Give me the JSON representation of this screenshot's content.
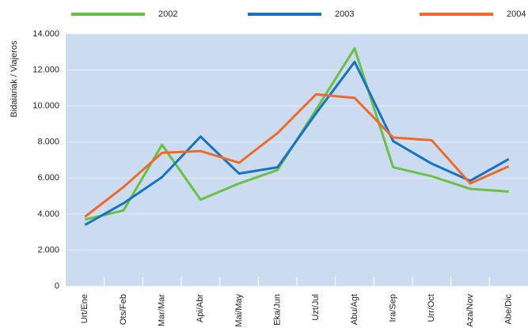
{
  "chart_data": {
    "type": "line",
    "y_label": "Bidaiariak / Viajeros",
    "categories": [
      "Urt/Ene",
      "Ots/Feb",
      "Mar/Mar",
      "Api/Abr",
      "Mai/May",
      "Eka/Jun",
      "Uzt/Jul",
      "Abu/Agt",
      "Ira/Sep",
      "Urr/Oct",
      "Aza/Nov",
      "Abe/Dic"
    ],
    "series": [
      {
        "name": "2002",
        "color": "#6abf45",
        "values": [
          3700,
          4200,
          7850,
          4800,
          5700,
          6450,
          9800,
          13200,
          6600,
          6100,
          5400,
          5250
        ]
      },
      {
        "name": "2003",
        "color": "#1673c4",
        "values": [
          3400,
          4600,
          6050,
          8300,
          6250,
          6600,
          9600,
          12450,
          8050,
          6800,
          5850,
          7050
        ]
      },
      {
        "name": "2004",
        "color": "#ef6a2a",
        "values": [
          3850,
          5500,
          7400,
          7500,
          6850,
          8500,
          10650,
          10450,
          8250,
          8100,
          5700,
          6650
        ]
      }
    ],
    "ylim": [
      0,
      14000
    ],
    "yticks": [
      0,
      {
        "value": 2000,
        "label": "2.000"
      },
      {
        "value": 4000,
        "label": "4.000"
      },
      {
        "value": 6000,
        "label": "6.000"
      },
      {
        "value": 8000,
        "label": "8.000"
      },
      {
        "value": 10000,
        "label": "10.000"
      },
      {
        "value": 12000,
        "label": "12.000"
      },
      {
        "value": 14000,
        "label": "14.000"
      }
    ],
    "grid": true,
    "background": "#ccdcf0"
  }
}
